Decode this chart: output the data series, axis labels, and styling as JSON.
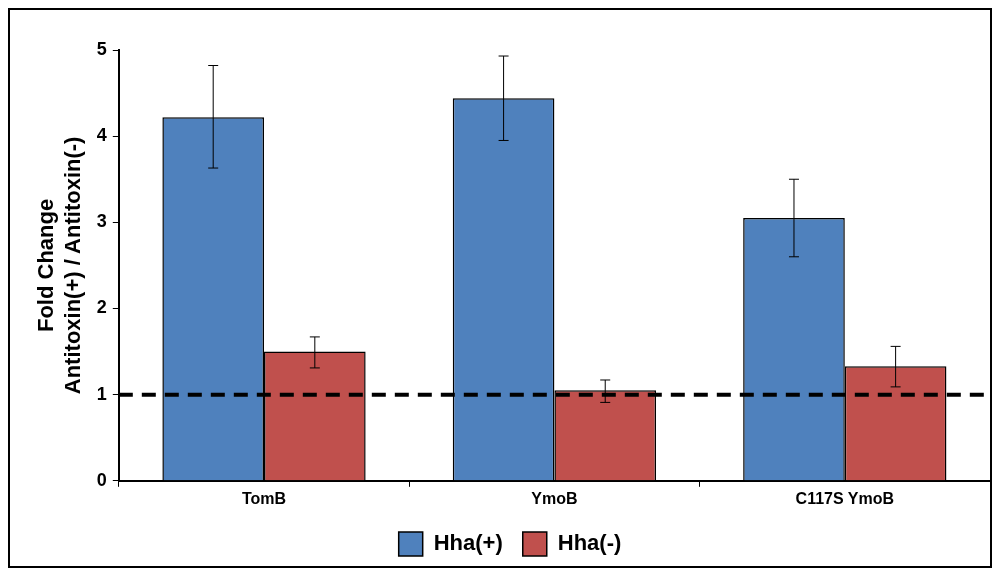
{
  "chart_data": {
    "type": "bar",
    "ylabel": "Fold Change\nAntitoxin(+) / Antitoxin(-)",
    "categories": [
      "TomB",
      "YmoB",
      "C117S YmoB"
    ],
    "series": [
      {
        "name": "Hha(+)",
        "color": "#4f81bd",
        "values": [
          4.22,
          4.44,
          3.05
        ],
        "errors": [
          [
            3.63,
            4.82
          ],
          [
            3.95,
            4.93
          ],
          [
            2.6,
            3.5
          ]
        ]
      },
      {
        "name": "Hha(-)",
        "color": "#c0504d",
        "values": [
          1.5,
          1.05,
          1.33
        ],
        "errors": [
          [
            1.31,
            1.67
          ],
          [
            0.91,
            1.17
          ],
          [
            1.09,
            1.56
          ]
        ]
      }
    ],
    "ylim": [
      0,
      5
    ],
    "yticks": [
      0,
      1,
      2,
      3,
      4,
      5
    ],
    "grid": false,
    "legend": "bottom",
    "ref_lines": [
      {
        "axis": "y",
        "value": 1,
        "color": "#000000",
        "line_style": "dashed"
      }
    ]
  }
}
